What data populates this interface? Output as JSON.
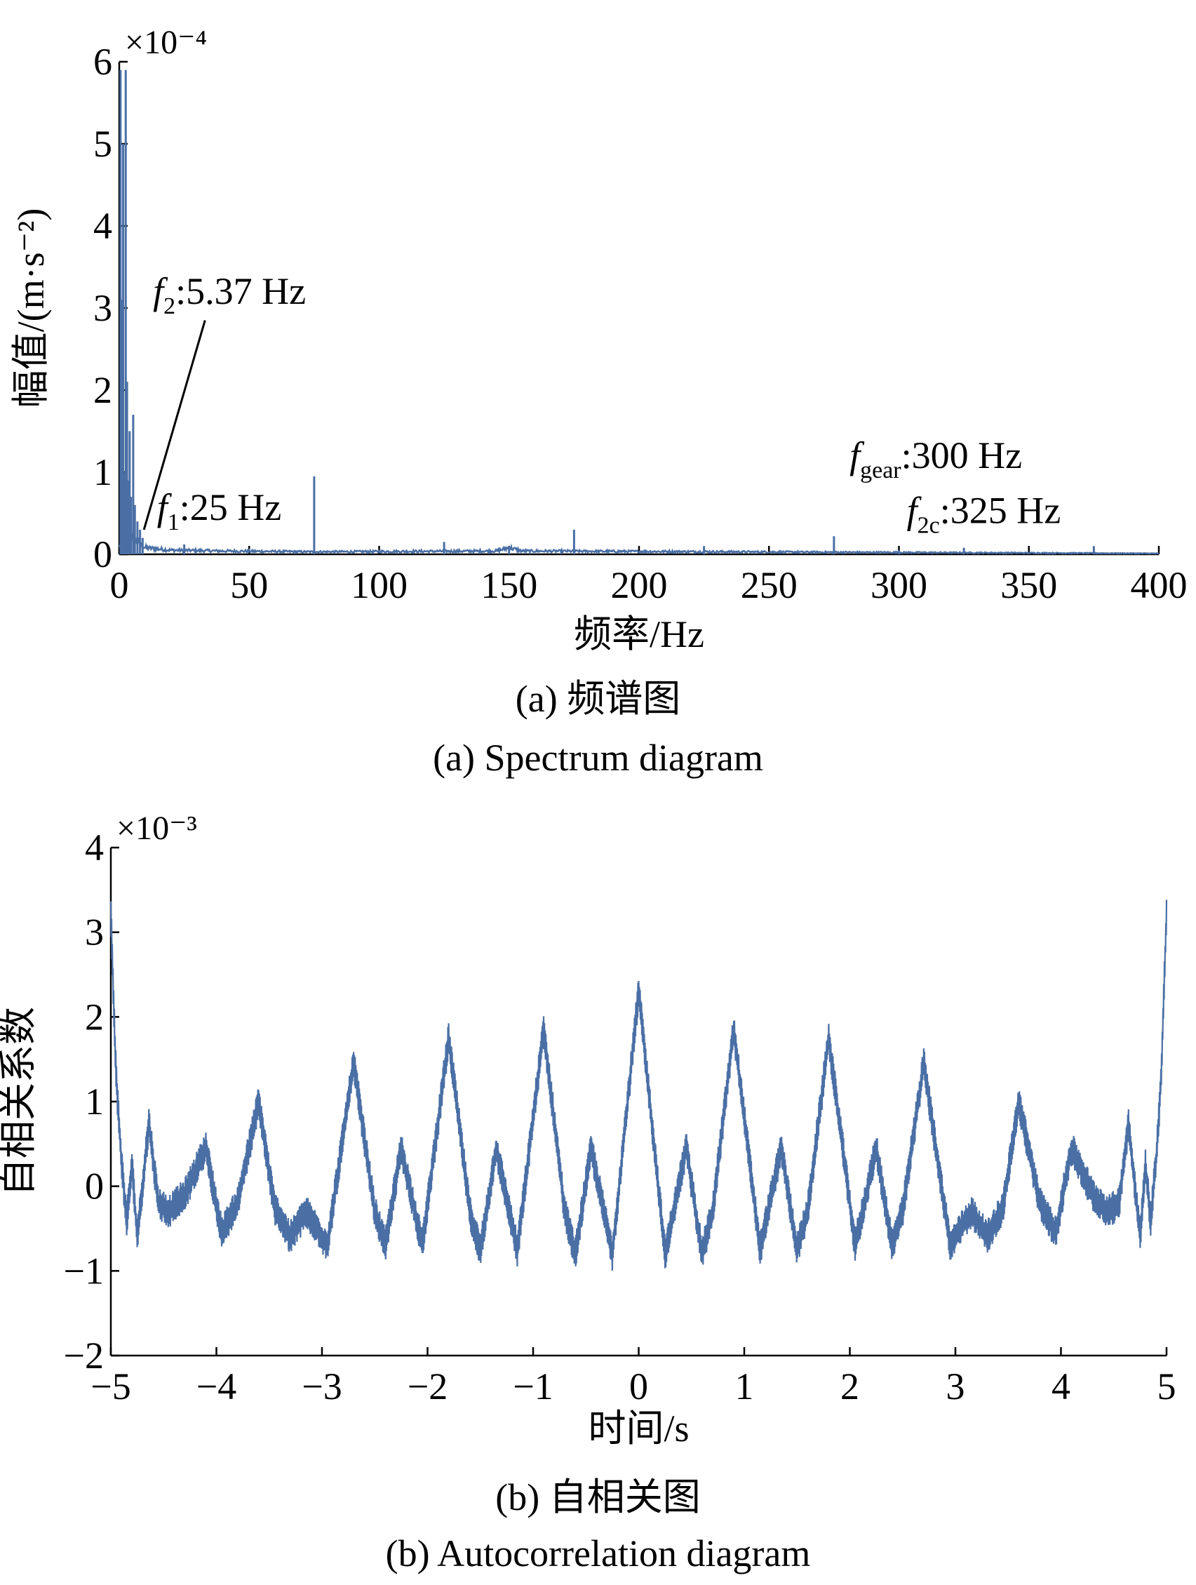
{
  "chart_data": [
    {
      "type": "line",
      "xlabel": "频率/Hz",
      "ylabel": "幅值/(m·s⁻²)",
      "yexponent": "×10⁻⁴",
      "xlim": [
        0,
        400
      ],
      "ylim": [
        0,
        6
      ],
      "xticks": [
        0,
        50,
        100,
        150,
        200,
        250,
        300,
        350,
        400
      ],
      "yticks": [
        0,
        1,
        2,
        3,
        4,
        5,
        6
      ],
      "grid": false,
      "color": "#4a6fa5",
      "baseline": [
        {
          "x": 0,
          "y": 0.1
        },
        {
          "x": 5,
          "y": 0.2
        },
        {
          "x": 10,
          "y": 0.08
        },
        {
          "x": 20,
          "y": 0.05
        },
        {
          "x": 40,
          "y": 0.04
        },
        {
          "x": 75,
          "y": 0.03
        },
        {
          "x": 145,
          "y": 0.04
        },
        {
          "x": 150,
          "y": 0.08
        },
        {
          "x": 155,
          "y": 0.04
        },
        {
          "x": 400,
          "y": 0.01
        }
      ],
      "peaks": [
        {
          "x": 0.5,
          "y": 5.9
        },
        {
          "x": 1.0,
          "y": 3.1
        },
        {
          "x": 1.5,
          "y": 5.0
        },
        {
          "x": 2.0,
          "y": 1.0
        },
        {
          "x": 2.5,
          "y": 5.9
        },
        {
          "x": 3.0,
          "y": 2.1
        },
        {
          "x": 3.5,
          "y": 0.9
        },
        {
          "x": 4.0,
          "y": 1.5
        },
        {
          "x": 4.5,
          "y": 0.7
        },
        {
          "x": 5.37,
          "y": 1.7
        },
        {
          "x": 6.0,
          "y": 0.6
        },
        {
          "x": 7.0,
          "y": 0.4
        },
        {
          "x": 8.0,
          "y": 0.3
        },
        {
          "x": 9.0,
          "y": 0.2
        },
        {
          "x": 25,
          "y": 0.12
        },
        {
          "x": 75,
          "y": 0.95
        },
        {
          "x": 125,
          "y": 0.15
        },
        {
          "x": 150,
          "y": 0.1
        },
        {
          "x": 175,
          "y": 0.3
        },
        {
          "x": 225,
          "y": 0.1
        },
        {
          "x": 275,
          "y": 0.22
        },
        {
          "x": 300,
          "y": 0.05
        },
        {
          "x": 325,
          "y": 0.08
        },
        {
          "x": 375,
          "y": 0.1
        }
      ],
      "annotations": [
        {
          "id": "f2",
          "symbol": "f",
          "sub": "2",
          "text": ":5.37 Hz",
          "tx": 13,
          "ty": 3.05,
          "lx1": 33,
          "ly1": 2.85,
          "lx2": 9.5,
          "ly2": 0.3
        },
        {
          "id": "f1",
          "symbol": "f",
          "sub": "1",
          "text": ":25 Hz",
          "tx": 14.5,
          "ty": 0.42
        },
        {
          "id": "fgear",
          "symbol": "f",
          "sub": "gear",
          "text": ":300 Hz",
          "tx": 281,
          "ty": 1.05
        },
        {
          "id": "f2c",
          "symbol": "f",
          "sub": "2c",
          "text": ":325 Hz",
          "tx": 303,
          "ty": 0.38
        }
      ]
    },
    {
      "type": "line",
      "xlabel": "时间/s",
      "ylabel": "自相关系数",
      "yexponent": "×10⁻³",
      "xlim": [
        -5,
        5
      ],
      "ylim": [
        -2,
        4
      ],
      "xticks": [
        -5,
        -4,
        -3,
        -2,
        -1,
        0,
        1,
        2,
        3,
        4,
        5
      ],
      "yticks": [
        -2,
        -1,
        0,
        1,
        2,
        3,
        4
      ],
      "grid": false,
      "color": "#4a6fa5",
      "envelope": [
        {
          "x": -5.0,
          "y": 3.25
        },
        {
          "x": -4.95,
          "y": 1.3
        },
        {
          "x": -4.9,
          "y": 0.3
        },
        {
          "x": -4.85,
          "y": -0.4
        },
        {
          "x": -4.8,
          "y": 0.25
        },
        {
          "x": -4.75,
          "y": -0.6
        },
        {
          "x": -4.7,
          "y": 0.0
        },
        {
          "x": -4.64,
          "y": 0.75
        },
        {
          "x": -4.55,
          "y": -0.2
        },
        {
          "x": -4.45,
          "y": -0.3
        },
        {
          "x": -4.3,
          "y": -0.1
        },
        {
          "x": -4.1,
          "y": 0.45
        },
        {
          "x": -3.95,
          "y": -0.55
        },
        {
          "x": -3.8,
          "y": -0.2
        },
        {
          "x": -3.6,
          "y": 1.0
        },
        {
          "x": -3.45,
          "y": -0.25
        },
        {
          "x": -3.3,
          "y": -0.6
        },
        {
          "x": -3.15,
          "y": -0.3
        },
        {
          "x": -2.95,
          "y": -0.7
        },
        {
          "x": -2.7,
          "y": 1.45
        },
        {
          "x": -2.5,
          "y": -0.3
        },
        {
          "x": -2.4,
          "y": -0.7
        },
        {
          "x": -2.25,
          "y": 0.45
        },
        {
          "x": -2.05,
          "y": -0.7
        },
        {
          "x": -1.8,
          "y": 1.75
        },
        {
          "x": -1.6,
          "y": -0.3
        },
        {
          "x": -1.5,
          "y": -0.75
        },
        {
          "x": -1.35,
          "y": 0.45
        },
        {
          "x": -1.15,
          "y": -0.75
        },
        {
          "x": -0.9,
          "y": 1.85
        },
        {
          "x": -0.7,
          "y": -0.3
        },
        {
          "x": -0.6,
          "y": -0.8
        },
        {
          "x": -0.45,
          "y": 0.45
        },
        {
          "x": -0.25,
          "y": -0.8
        },
        {
          "x": 0.0,
          "y": 2.3
        },
        {
          "x": 0.25,
          "y": -0.8
        },
        {
          "x": 0.45,
          "y": 0.45
        },
        {
          "x": 0.6,
          "y": -0.8
        },
        {
          "x": 0.7,
          "y": -0.3
        },
        {
          "x": 0.9,
          "y": 1.85
        },
        {
          "x": 1.15,
          "y": -0.75
        },
        {
          "x": 1.35,
          "y": 0.45
        },
        {
          "x": 1.5,
          "y": -0.75
        },
        {
          "x": 1.6,
          "y": -0.3
        },
        {
          "x": 1.8,
          "y": 1.75
        },
        {
          "x": 2.05,
          "y": -0.7
        },
        {
          "x": 2.25,
          "y": 0.45
        },
        {
          "x": 2.4,
          "y": -0.7
        },
        {
          "x": 2.5,
          "y": -0.3
        },
        {
          "x": 2.7,
          "y": 1.45
        },
        {
          "x": 2.95,
          "y": -0.7
        },
        {
          "x": 3.15,
          "y": -0.3
        },
        {
          "x": 3.3,
          "y": -0.6
        },
        {
          "x": 3.45,
          "y": -0.25
        },
        {
          "x": 3.6,
          "y": 1.0
        },
        {
          "x": 3.8,
          "y": -0.2
        },
        {
          "x": 3.95,
          "y": -0.55
        },
        {
          "x": 4.1,
          "y": 0.45
        },
        {
          "x": 4.3,
          "y": -0.1
        },
        {
          "x": 4.45,
          "y": -0.3
        },
        {
          "x": 4.55,
          "y": -0.2
        },
        {
          "x": 4.64,
          "y": 0.75
        },
        {
          "x": 4.7,
          "y": 0.0
        },
        {
          "x": 4.75,
          "y": -0.6
        },
        {
          "x": 4.8,
          "y": 0.25
        },
        {
          "x": 4.85,
          "y": -0.4
        },
        {
          "x": 4.9,
          "y": 0.3
        },
        {
          "x": 4.95,
          "y": 1.3
        },
        {
          "x": 5.0,
          "y": 3.25
        }
      ]
    }
  ],
  "captions": {
    "a_cn": "(a) 频谱图",
    "a_en": "(a) Spectrum diagram",
    "b_cn": "(b) 自相关图",
    "b_en": "(b) Autocorrelation diagram"
  }
}
